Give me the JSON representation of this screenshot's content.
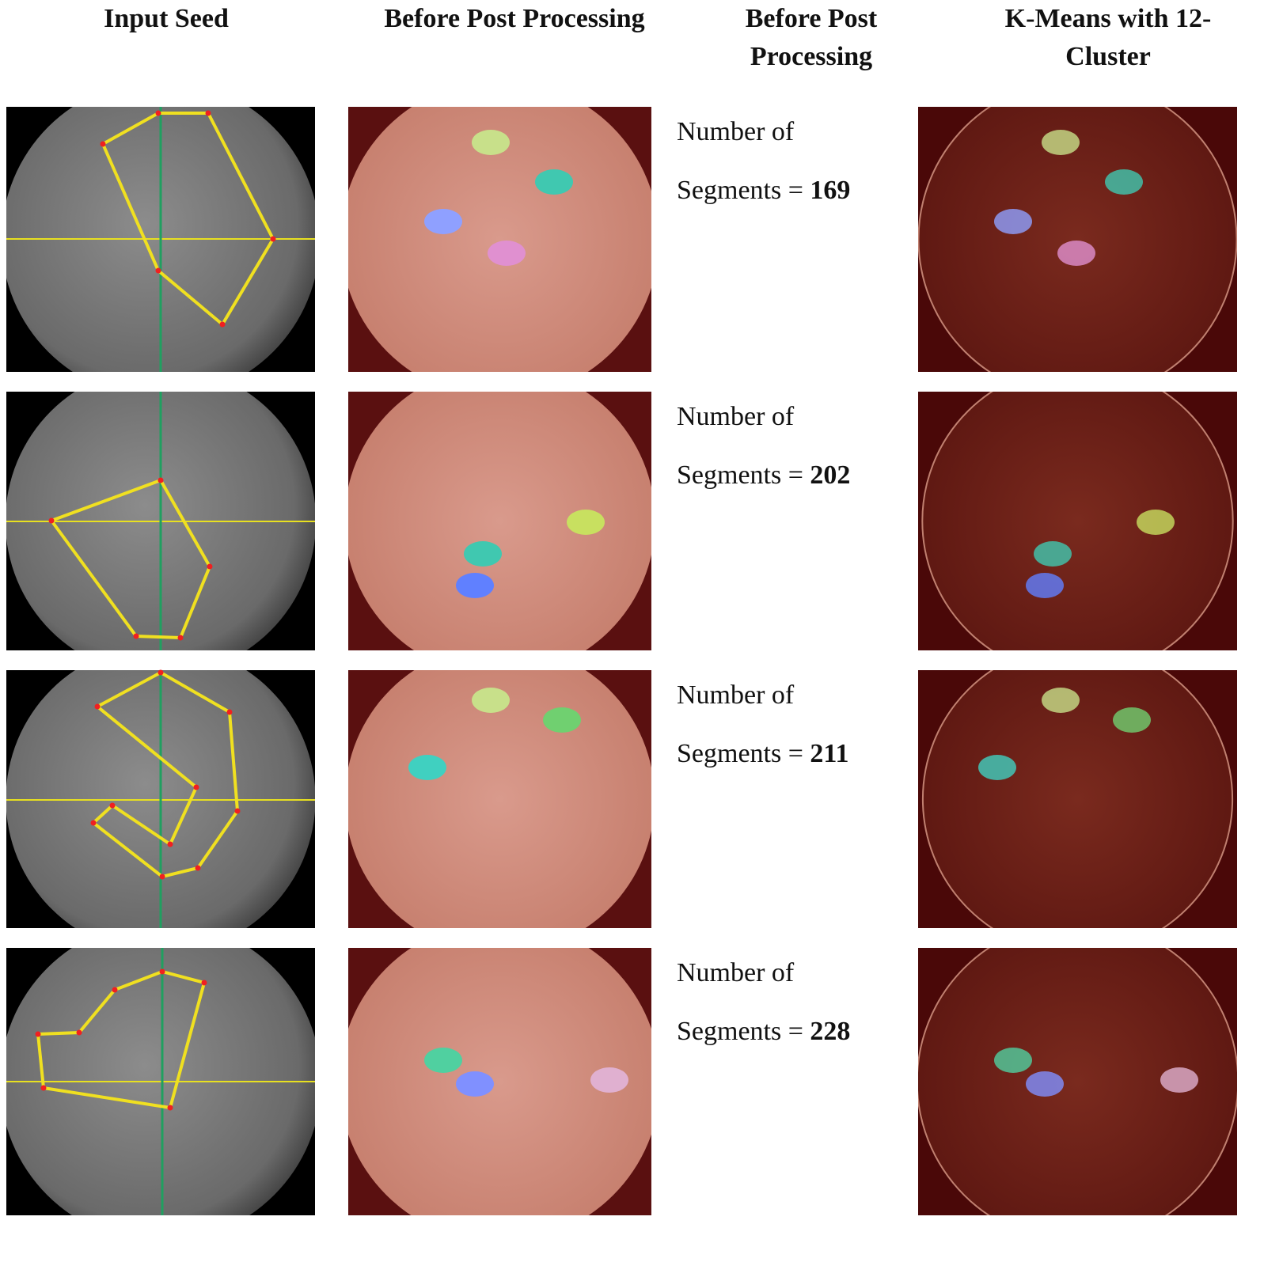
{
  "header": {
    "columns": [
      "Input Seed",
      "Before Post Processing",
      "Before Post Processing",
      "K-Means with 12-Cluster"
    ]
  },
  "rows": [
    {
      "label_line1": "Number of",
      "label_line2": "Segments =",
      "count": 169
    },
    {
      "label_line1": "Number of",
      "label_line2": "Segments =",
      "count": 202
    },
    {
      "label_line1": "Number of",
      "label_line2": "Segments =",
      "count": 211
    },
    {
      "label_line1": "Number of",
      "label_line2": "Segments =",
      "count": 228
    }
  ]
}
